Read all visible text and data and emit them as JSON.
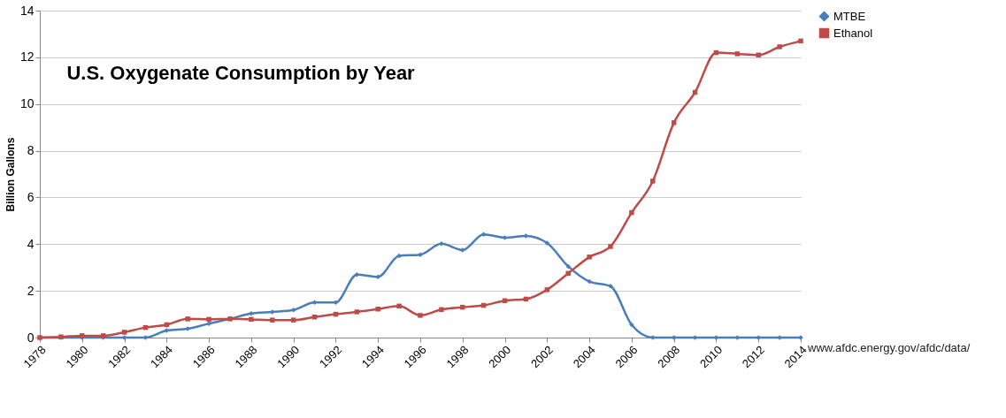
{
  "chart_data": {
    "type": "line",
    "title": "U.S. Oxygenate Consumption by Year",
    "ylabel": "Billion Gallons",
    "x": [
      1978,
      1979,
      1980,
      1981,
      1982,
      1983,
      1984,
      1985,
      1986,
      1987,
      1988,
      1989,
      1990,
      1991,
      1992,
      1993,
      1994,
      1995,
      1996,
      1997,
      1998,
      1999,
      2000,
      2001,
      2002,
      2003,
      2004,
      2005,
      2006,
      2007,
      2008,
      2009,
      2010,
      2011,
      2012,
      2013,
      2014
    ],
    "series": [
      {
        "name": "MTBE",
        "color": "#4a7ebb",
        "marker": "diamond",
        "values": [
          0,
          0,
          0,
          0,
          0,
          0,
          0.3,
          0.38,
          0.6,
          0.8,
          1.03,
          1.1,
          1.18,
          1.5,
          1.5,
          2.7,
          2.6,
          3.5,
          3.55,
          4.02,
          3.75,
          4.42,
          4.28,
          4.35,
          4.05,
          3.05,
          2.4,
          2.2,
          0.55,
          0,
          0,
          0,
          0,
          0,
          0,
          0,
          0
        ]
      },
      {
        "name": "Ethanol",
        "color": "#be4b48",
        "marker": "square",
        "values": [
          0,
          0.03,
          0.08,
          0.08,
          0.23,
          0.43,
          0.55,
          0.8,
          0.78,
          0.8,
          0.78,
          0.75,
          0.75,
          0.88,
          1.0,
          1.1,
          1.22,
          1.35,
          0.95,
          1.2,
          1.3,
          1.38,
          1.58,
          1.65,
          2.05,
          2.75,
          3.45,
          3.9,
          5.35,
          6.7,
          9.2,
          10.5,
          12.2,
          12.15,
          12.1,
          12.45,
          12.7
        ]
      }
    ],
    "xlim": [
      1978,
      2014
    ],
    "xticks": [
      1978,
      1980,
      1982,
      1984,
      1986,
      1988,
      1990,
      1992,
      1994,
      1996,
      1998,
      2000,
      2002,
      2004,
      2006,
      2008,
      2010,
      2012,
      2014
    ],
    "ylim": [
      0,
      14
    ],
    "yticks": [
      0,
      2,
      4,
      6,
      8,
      10,
      12,
      14
    ],
    "grid": "y",
    "legend": "right",
    "line_style": "solid",
    "annotations": [
      "www.afdc.energy.gov/afdc/data/"
    ]
  }
}
